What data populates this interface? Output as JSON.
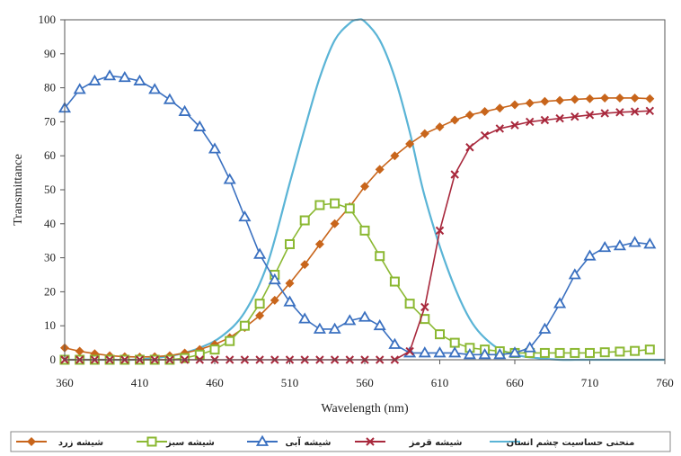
{
  "chart_data": {
    "type": "line",
    "xlabel": "Wavelength (nm)",
    "ylabel": "Transmittance",
    "xlim": [
      360,
      760
    ],
    "ylim": [
      0,
      100
    ],
    "x_ticks": [
      360,
      410,
      460,
      510,
      560,
      610,
      660,
      710,
      760
    ],
    "y_ticks": [
      0,
      10,
      20,
      30,
      40,
      50,
      60,
      70,
      80,
      90,
      100
    ],
    "grid": false,
    "legend_position": "bottom",
    "series": [
      {
        "name": "شیشه زرد",
        "color": "#c8651b",
        "marker": "diamond",
        "x": [
          360,
          370,
          380,
          390,
          400,
          410,
          420,
          430,
          440,
          450,
          460,
          470,
          480,
          490,
          500,
          510,
          520,
          530,
          540,
          550,
          560,
          570,
          580,
          590,
          600,
          610,
          620,
          630,
          640,
          650,
          660,
          670,
          680,
          690,
          700,
          710,
          720,
          730,
          740,
          750
        ],
        "values": [
          3.5,
          2.5,
          1.8,
          1.2,
          0.9,
          0.8,
          0.9,
          1.2,
          2,
          3,
          4.5,
          6.5,
          9.5,
          13,
          17.5,
          22.5,
          28,
          34,
          40,
          45,
          51,
          56,
          60,
          63.5,
          66.5,
          68.5,
          70.5,
          72,
          73,
          74,
          75,
          75.5,
          76,
          76.3,
          76.6,
          76.8,
          77,
          77,
          77,
          76.8
        ]
      },
      {
        "name": "شیشه سبز",
        "color": "#8bb832",
        "marker": "square",
        "x": [
          360,
          370,
          380,
          390,
          400,
          410,
          420,
          430,
          440,
          450,
          460,
          470,
          480,
          490,
          500,
          510,
          520,
          530,
          540,
          550,
          560,
          570,
          580,
          590,
          600,
          610,
          620,
          630,
          640,
          650,
          660,
          670,
          680,
          690,
          700,
          710,
          720,
          730,
          740,
          750
        ],
        "values": [
          0,
          0,
          0,
          0,
          0,
          0,
          0,
          0,
          0.5,
          1.5,
          3,
          5.5,
          10,
          16.5,
          25,
          34,
          41,
          45.5,
          46,
          44.5,
          38,
          30.5,
          23,
          16.5,
          12,
          7.5,
          5,
          3.5,
          3,
          2.5,
          2,
          2,
          2,
          2,
          2,
          2,
          2.2,
          2.4,
          2.6,
          3
        ]
      },
      {
        "name": "شیشه آبی",
        "color": "#3a70c0",
        "marker": "triangle",
        "x": [
          360,
          370,
          380,
          390,
          400,
          410,
          420,
          430,
          440,
          450,
          460,
          470,
          480,
          490,
          500,
          510,
          520,
          530,
          540,
          550,
          560,
          570,
          580,
          590,
          600,
          610,
          620,
          630,
          640,
          650,
          660,
          670,
          680,
          690,
          700,
          710,
          720,
          730,
          740,
          750
        ],
        "values": [
          74,
          79.5,
          82,
          83.5,
          83,
          82,
          79.5,
          76.5,
          73,
          68.5,
          62,
          53,
          42,
          31,
          23.5,
          17,
          12,
          9,
          9,
          11.5,
          12.5,
          10,
          4.5,
          2,
          2,
          2,
          2,
          1.5,
          1.5,
          1.5,
          2,
          3.5,
          9,
          16.5,
          25,
          30.5,
          33,
          33.5,
          34.5,
          34
        ]
      },
      {
        "name": "شیشه قرمز",
        "color": "#a8283c",
        "marker": "x",
        "x": [
          360,
          370,
          380,
          390,
          400,
          410,
          420,
          430,
          440,
          450,
          460,
          470,
          480,
          490,
          500,
          510,
          520,
          530,
          540,
          550,
          560,
          570,
          580,
          590,
          600,
          610,
          620,
          630,
          640,
          650,
          660,
          670,
          680,
          690,
          700,
          710,
          720,
          730,
          740,
          750
        ],
        "values": [
          0,
          0,
          0,
          0,
          0,
          0,
          0,
          0,
          0,
          0,
          0,
          0,
          0,
          0,
          0,
          0,
          0,
          0,
          0,
          0,
          0,
          0,
          0,
          2.5,
          15.5,
          38,
          54.5,
          62.5,
          66,
          68,
          69,
          70,
          70.5,
          71,
          71.5,
          72,
          72.5,
          72.8,
          73,
          73.2
        ]
      },
      {
        "name": "منحنی حساسیت چشم انسان",
        "color": "#5ab4d6",
        "marker": "none",
        "x": [
          360,
          375,
          390,
          405,
          420,
          435,
          450,
          465,
          480,
          495,
          510,
          520,
          530,
          540,
          550,
          555,
          560,
          570,
          580,
          590,
          600,
          615,
          630,
          645,
          660,
          675,
          690,
          705,
          720,
          740,
          760
        ],
        "values": [
          0,
          0,
          0,
          0,
          0.5,
          1.5,
          3.5,
          7,
          14,
          28,
          52,
          68,
          83,
          94,
          99,
          100,
          99.5,
          94,
          83,
          67,
          48,
          27,
          12,
          4.5,
          1.5,
          0.5,
          0,
          0,
          0,
          0,
          0
        ]
      }
    ]
  }
}
